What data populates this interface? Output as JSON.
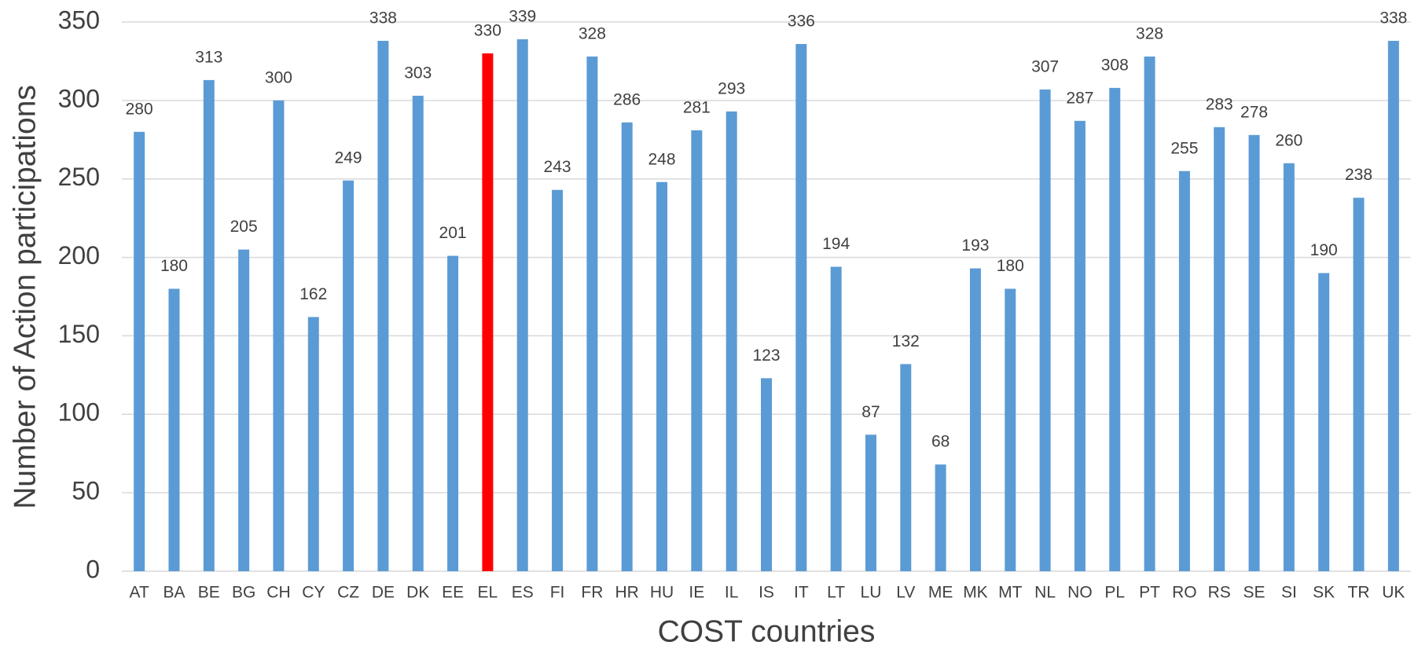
{
  "chart_data": {
    "type": "bar",
    "x_label": "COST countries",
    "y_label": "Number of Action participations",
    "categories": [
      "AT",
      "BA",
      "BE",
      "BG",
      "CH",
      "CY",
      "CZ",
      "DE",
      "DK",
      "EE",
      "EL",
      "ES",
      "FI",
      "FR",
      "HR",
      "HU",
      "IE",
      "IL",
      "IS",
      "IT",
      "LT",
      "LU",
      "LV",
      "ME",
      "MK",
      "MT",
      "NL",
      "NO",
      "PL",
      "PT",
      "RO",
      "RS",
      "SE",
      "SI",
      "SK",
      "TR",
      "UK"
    ],
    "values": [
      280,
      180,
      313,
      205,
      300,
      162,
      249,
      338,
      303,
      201,
      330,
      339,
      243,
      328,
      286,
      248,
      281,
      293,
      123,
      336,
      194,
      87,
      132,
      68,
      193,
      180,
      307,
      287,
      308,
      328,
      255,
      283,
      278,
      260,
      190,
      238,
      338
    ],
    "colors": [
      "#5b9bd5",
      "#5b9bd5",
      "#5b9bd5",
      "#5b9bd5",
      "#5b9bd5",
      "#5b9bd5",
      "#5b9bd5",
      "#5b9bd5",
      "#5b9bd5",
      "#5b9bd5",
      "#ff0000",
      "#5b9bd5",
      "#5b9bd5",
      "#5b9bd5",
      "#5b9bd5",
      "#5b9bd5",
      "#5b9bd5",
      "#5b9bd5",
      "#5b9bd5",
      "#5b9bd5",
      "#5b9bd5",
      "#5b9bd5",
      "#5b9bd5",
      "#5b9bd5",
      "#5b9bd5",
      "#5b9bd5",
      "#5b9bd5",
      "#5b9bd5",
      "#5b9bd5",
      "#5b9bd5",
      "#5b9bd5",
      "#5b9bd5",
      "#5b9bd5",
      "#5b9bd5",
      "#5b9bd5",
      "#5b9bd5",
      "#5b9bd5"
    ],
    "ylim": [
      0,
      350
    ],
    "yticks": [
      0,
      50,
      100,
      150,
      200,
      250,
      300,
      350
    ],
    "grid": true
  }
}
